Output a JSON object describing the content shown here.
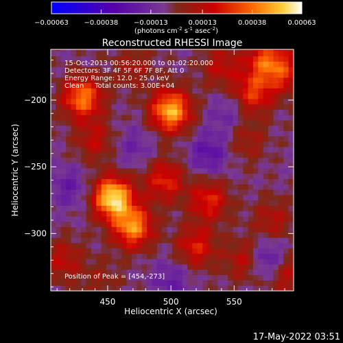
{
  "chart_data": {
    "type": "heatmap",
    "title": "Reconstructed RHESSI Image",
    "xlabel": "Heliocentric X (arcsec)",
    "ylabel": "Heliocentric Y (arcsec)",
    "xlim": [
      405,
      597
    ],
    "ylim": [
      -343,
      -162
    ],
    "xticks": [
      450,
      500,
      550
    ],
    "yticks": [
      -200,
      -250,
      -300
    ],
    "colorbar": {
      "ticks": [
        "-0.00063",
        "-0.00038",
        "-0.00013",
        "0.00013",
        "0.00038",
        "0.00063"
      ],
      "range": [
        -0.00063,
        0.00063
      ],
      "unit_prefix": "(photons cm",
      "unit_exp1": "-2",
      "unit_mid": " s",
      "unit_exp2": "-1",
      "unit_mid2": " asec",
      "unit_exp3": "-2",
      "unit_suffix": ")"
    },
    "peak": {
      "x": 454,
      "y": -273,
      "label": "Position of Peak = [454,-273]"
    },
    "hot_spots": [
      {
        "x": 454,
        "y": -273,
        "value": 0.00063
      },
      {
        "x": 500,
        "y": -208,
        "value": 0.00055
      },
      {
        "x": 430,
        "y": -198,
        "value": 0.00045
      },
      {
        "x": 470,
        "y": -295,
        "value": 0.00048
      },
      {
        "x": 495,
        "y": -260,
        "value": 0.0003
      },
      {
        "x": 530,
        "y": -275,
        "value": 0.0003
      },
      {
        "x": 520,
        "y": -310,
        "value": 0.00028
      },
      {
        "x": 565,
        "y": -195,
        "value": 0.00032
      },
      {
        "x": 590,
        "y": -180,
        "value": 0.00025
      },
      {
        "x": 575,
        "y": -170,
        "value": 0.00035
      },
      {
        "x": 560,
        "y": -320,
        "value": 0.00025
      },
      {
        "x": 590,
        "y": -330,
        "value": 0.00022
      },
      {
        "x": 440,
        "y": -230,
        "value": 0.0002
      },
      {
        "x": 560,
        "y": -230,
        "value": 0.00015
      },
      {
        "x": 415,
        "y": -320,
        "value": 0.0002
      },
      {
        "x": 540,
        "y": -175,
        "value": 0.0002
      },
      {
        "x": 470,
        "y": -175,
        "value": 0.00015
      },
      {
        "x": 580,
        "y": -290,
        "value": 0.00018
      },
      {
        "x": 445,
        "y": -335,
        "value": 0.0001
      }
    ],
    "cold_spots": [
      {
        "x": 530,
        "y": -240,
        "value": -0.0002
      },
      {
        "x": 575,
        "y": -320,
        "value": -0.00028
      },
      {
        "x": 420,
        "y": -265,
        "value": -0.00015
      },
      {
        "x": 545,
        "y": -210,
        "value": -0.00012
      },
      {
        "x": 470,
        "y": -235,
        "value": -0.00012
      },
      {
        "x": 500,
        "y": -335,
        "value": -0.00015
      }
    ]
  },
  "info": {
    "line1": "15-Oct-2013 00:56:20.000 to 01:02:20.000",
    "line2": "Detectors: 3F 4F 5F 6F 7F 8F, Att 0",
    "line3": "Energy Range: 12.0 - 25.0 keV",
    "line4": "Clean     Total counts: 3.00E+04"
  },
  "footer": {
    "timestamp": "17-May-2022 03:51"
  }
}
